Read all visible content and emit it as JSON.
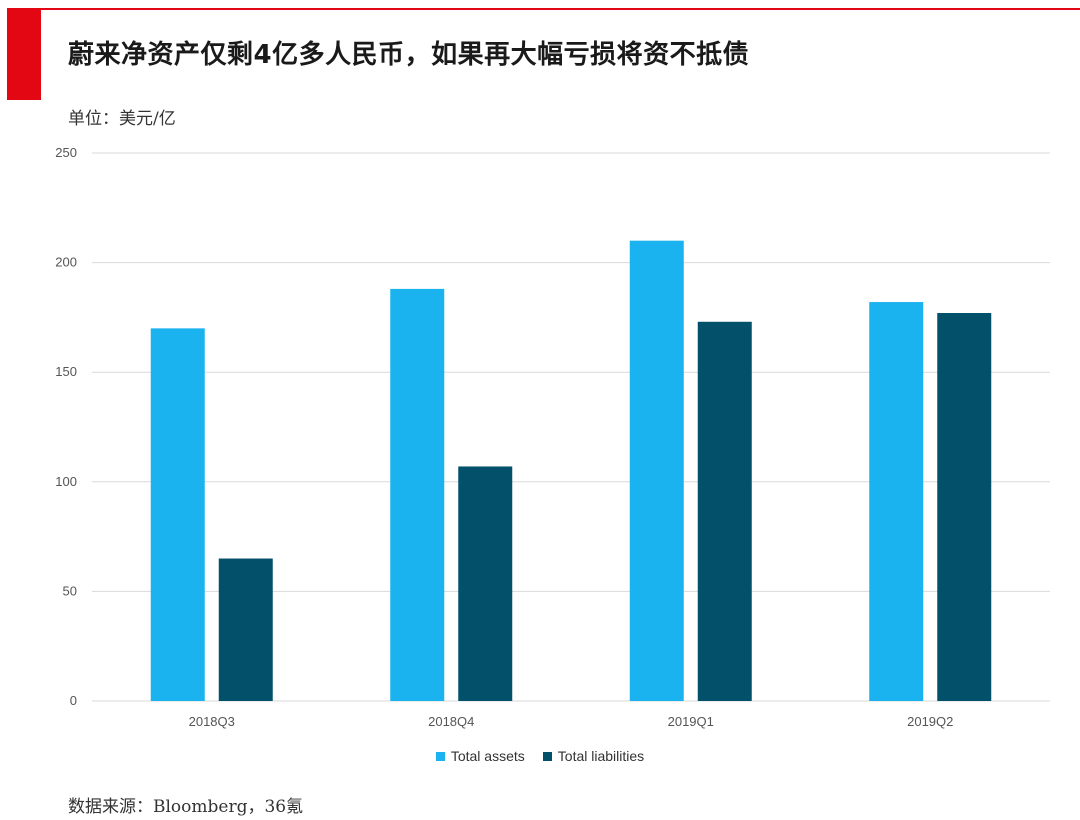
{
  "header": {
    "title": "蔚来净资产仅剩4亿多人民币，如果再大幅亏损将资不抵债",
    "unit": "单位：美元/亿"
  },
  "footer": {
    "source": "数据来源：Bloomberg，36氪"
  },
  "colors": {
    "accent": "#e30613",
    "total_assets": "#1ab3f0",
    "total_liabilities": "#03506b",
    "grid": "#d9d9d9"
  },
  "chart_data": {
    "type": "bar",
    "categories": [
      "2018Q3",
      "2018Q4",
      "2019Q1",
      "2019Q2"
    ],
    "series": [
      {
        "name": "Total assets",
        "values": [
          170,
          188,
          210,
          182
        ]
      },
      {
        "name": "Total liabilities",
        "values": [
          65,
          107,
          173,
          177
        ]
      }
    ],
    "yticks": [
      0,
      50,
      100,
      150,
      200,
      250
    ],
    "ylim": [
      0,
      250
    ],
    "grid": true,
    "legend": "bottom-center"
  }
}
